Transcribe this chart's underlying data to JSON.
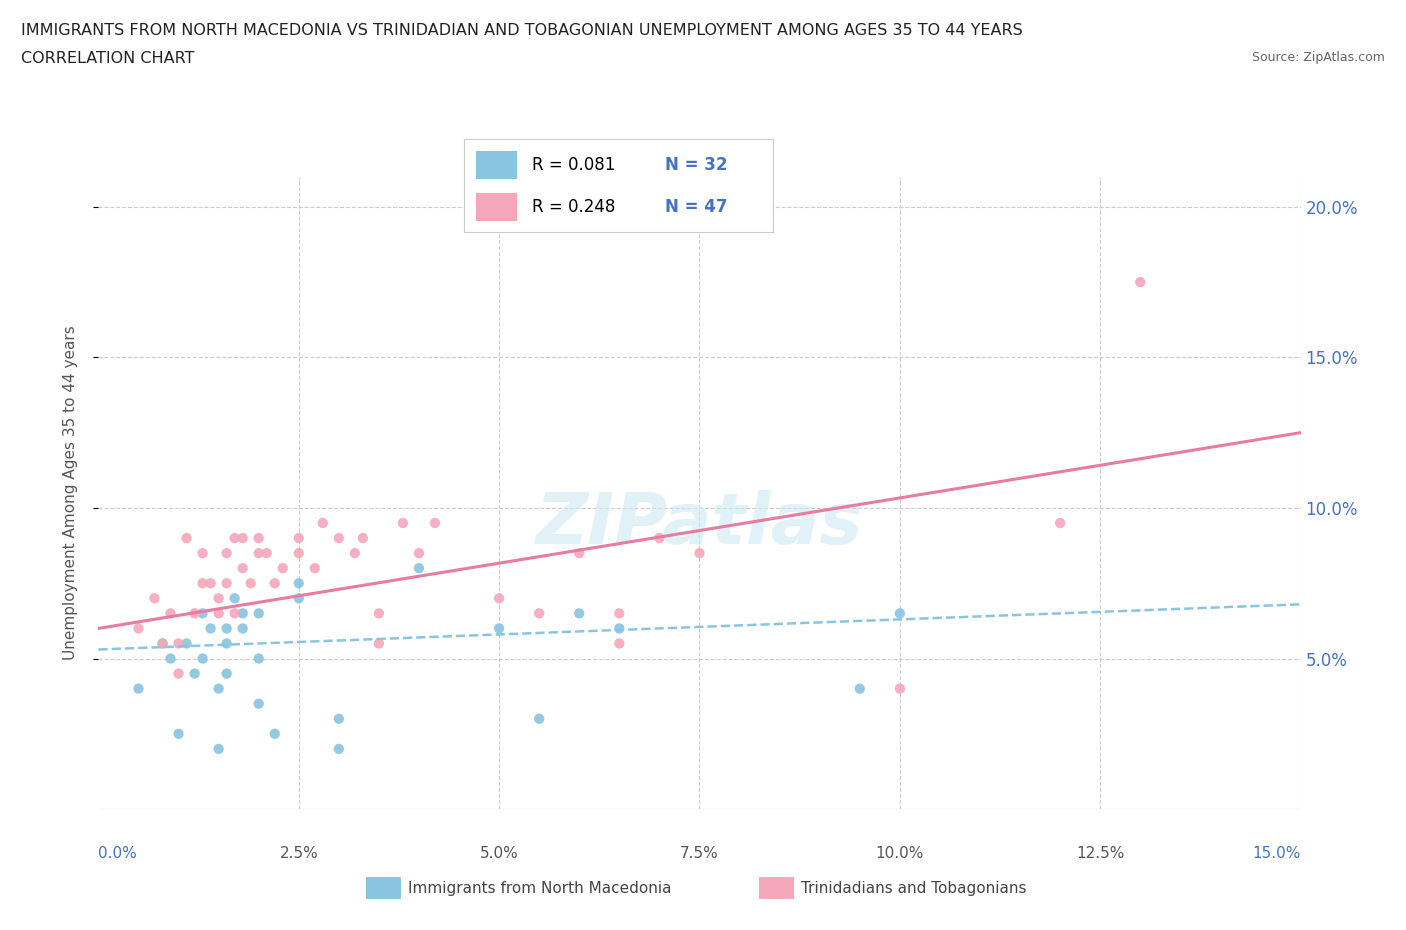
{
  "title_line1": "IMMIGRANTS FROM NORTH MACEDONIA VS TRINIDADIAN AND TOBAGONIAN UNEMPLOYMENT AMONG AGES 35 TO 44 YEARS",
  "title_line2": "CORRELATION CHART",
  "source": "Source: ZipAtlas.com",
  "ylabel": "Unemployment Among Ages 35 to 44 years",
  "xlim": [
    0.0,
    0.15
  ],
  "ylim": [
    0.0,
    0.21
  ],
  "xtick_vals": [
    0.0,
    0.025,
    0.05,
    0.075,
    0.1,
    0.125,
    0.15
  ],
  "xtick_labels": [
    "0.0%",
    "2.5%",
    "5.0%",
    "7.5%",
    "10.0%",
    "12.5%",
    "15.0%"
  ],
  "ytick_vals": [
    0.05,
    0.1,
    0.15,
    0.2
  ],
  "ytick_labels": [
    "5.0%",
    "10.0%",
    "15.0%",
    "20.0%"
  ],
  "legend_R1": "R = 0.081",
  "legend_N1": "N = 32",
  "legend_R2": "R = 0.248",
  "legend_N2": "N = 47",
  "color_blue": "#89c4e1",
  "color_pink": "#f4a7b9",
  "color_blue_line": "#89c4e1",
  "color_pink_line": "#e87ca0",
  "color_label_blue": "#4472c4",
  "watermark": "ZIPatlas",
  "blue_scatter_x": [
    0.005,
    0.008,
    0.009,
    0.01,
    0.011,
    0.012,
    0.013,
    0.013,
    0.014,
    0.015,
    0.015,
    0.016,
    0.016,
    0.016,
    0.017,
    0.018,
    0.018,
    0.02,
    0.02,
    0.02,
    0.022,
    0.025,
    0.025,
    0.03,
    0.03,
    0.04,
    0.05,
    0.055,
    0.06,
    0.065,
    0.095,
    0.1
  ],
  "blue_scatter_y": [
    0.04,
    0.055,
    0.05,
    0.025,
    0.055,
    0.045,
    0.05,
    0.065,
    0.06,
    0.02,
    0.04,
    0.045,
    0.055,
    0.06,
    0.07,
    0.06,
    0.065,
    0.035,
    0.05,
    0.065,
    0.025,
    0.07,
    0.075,
    0.02,
    0.03,
    0.08,
    0.06,
    0.03,
    0.065,
    0.06,
    0.04,
    0.065
  ],
  "pink_scatter_x": [
    0.005,
    0.007,
    0.008,
    0.009,
    0.01,
    0.01,
    0.011,
    0.012,
    0.013,
    0.013,
    0.014,
    0.015,
    0.015,
    0.016,
    0.016,
    0.017,
    0.017,
    0.018,
    0.018,
    0.019,
    0.02,
    0.02,
    0.021,
    0.022,
    0.023,
    0.025,
    0.025,
    0.027,
    0.028,
    0.03,
    0.032,
    0.033,
    0.035,
    0.035,
    0.038,
    0.04,
    0.042,
    0.05,
    0.055,
    0.06,
    0.065,
    0.065,
    0.07,
    0.075,
    0.1,
    0.12,
    0.13
  ],
  "pink_scatter_y": [
    0.06,
    0.07,
    0.055,
    0.065,
    0.045,
    0.055,
    0.09,
    0.065,
    0.075,
    0.085,
    0.075,
    0.065,
    0.07,
    0.075,
    0.085,
    0.065,
    0.09,
    0.08,
    0.09,
    0.075,
    0.085,
    0.09,
    0.085,
    0.075,
    0.08,
    0.085,
    0.09,
    0.08,
    0.095,
    0.09,
    0.085,
    0.09,
    0.055,
    0.065,
    0.095,
    0.085,
    0.095,
    0.07,
    0.065,
    0.085,
    0.055,
    0.065,
    0.09,
    0.085,
    0.04,
    0.095,
    0.175
  ],
  "blue_trend_x": [
    0.0,
    0.15
  ],
  "blue_trend_y": [
    0.053,
    0.068
  ],
  "pink_trend_x": [
    0.0,
    0.15
  ],
  "pink_trend_y": [
    0.06,
    0.125
  ],
  "background_color": "#ffffff",
  "grid_color": "#cccccc"
}
